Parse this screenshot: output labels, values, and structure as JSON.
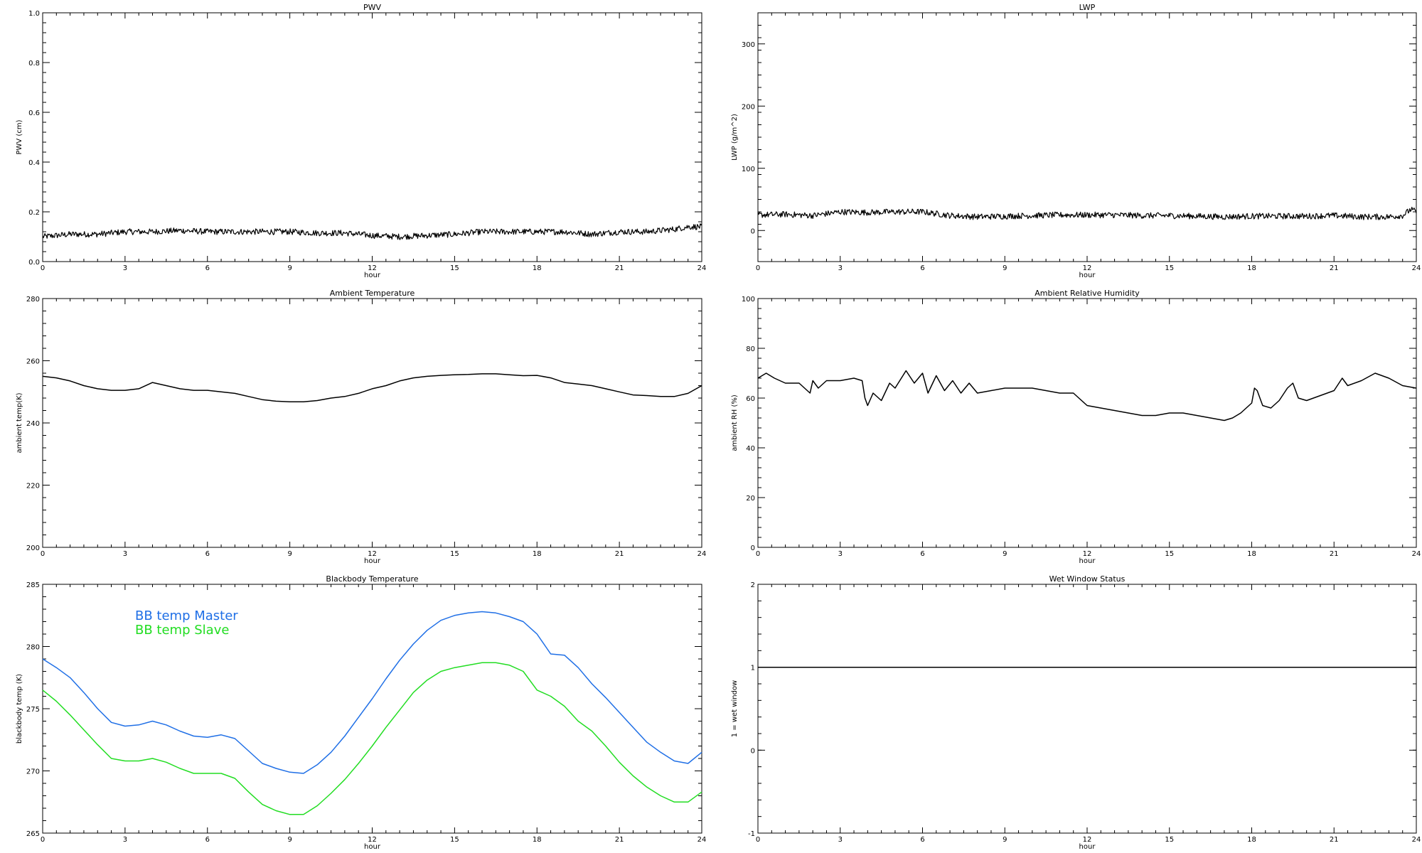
{
  "chart_data": [
    {
      "id": "pwv",
      "type": "line",
      "title": "PWV",
      "xlabel": "hour",
      "ylabel": "PWV (cm)",
      "xlim": [
        0,
        24
      ],
      "ylim": [
        0,
        1.0
      ],
      "xticks": [
        0,
        3,
        6,
        9,
        12,
        15,
        18,
        21,
        24
      ],
      "yticks": [
        0.0,
        0.2,
        0.4,
        0.6,
        0.8,
        1.0
      ],
      "ytick_labels": [
        "0.0",
        "0.2",
        "0.4",
        "0.6",
        "0.8",
        "1.0"
      ],
      "noisy": true,
      "series": [
        {
          "color": "#000000",
          "x": [
            0,
            1,
            2,
            3,
            4,
            5,
            6,
            7,
            8,
            9,
            10,
            11,
            12,
            13,
            14,
            15,
            16,
            17,
            18,
            19,
            20,
            21,
            22,
            23,
            23.5,
            24
          ],
          "values": [
            0.1,
            0.11,
            0.11,
            0.12,
            0.12,
            0.125,
            0.12,
            0.12,
            0.12,
            0.12,
            0.115,
            0.115,
            0.105,
            0.1,
            0.105,
            0.11,
            0.12,
            0.12,
            0.12,
            0.12,
            0.11,
            0.12,
            0.12,
            0.13,
            0.14,
            0.14
          ]
        }
      ]
    },
    {
      "id": "lwp",
      "type": "line",
      "title": "LWP",
      "xlabel": "hour",
      "ylabel": "LWP (g/m^2)",
      "xlim": [
        0,
        24
      ],
      "ylim": [
        -50,
        350
      ],
      "xticks": [
        0,
        3,
        6,
        9,
        12,
        15,
        18,
        21,
        24
      ],
      "yticks": [
        0,
        100,
        200,
        300
      ],
      "ytick_labels": [
        "0",
        "100",
        "200",
        "300"
      ],
      "noisy": true,
      "series": [
        {
          "color": "#000000",
          "x": [
            0,
            1,
            2,
            3,
            4,
            5,
            6,
            7,
            8,
            9,
            10,
            11,
            12,
            13,
            14,
            15,
            16,
            17,
            18,
            19,
            20,
            21,
            22,
            23,
            23.5,
            23.8,
            24
          ],
          "values": [
            25,
            26,
            24,
            30,
            29,
            30,
            30,
            24,
            22,
            23,
            24,
            25,
            25,
            25,
            24,
            24,
            23,
            22,
            23,
            23,
            23,
            24,
            22,
            22,
            24,
            34,
            30
          ]
        }
      ]
    },
    {
      "id": "ambient-temp",
      "type": "line",
      "title": "Ambient Temperature",
      "xlabel": "hour",
      "ylabel": "ambient temp(K)",
      "xlim": [
        0,
        24
      ],
      "ylim": [
        200,
        280
      ],
      "xticks": [
        0,
        3,
        6,
        9,
        12,
        15,
        18,
        21,
        24
      ],
      "yticks": [
        200,
        220,
        240,
        260,
        280
      ],
      "ytick_labels": [
        "200",
        "220",
        "240",
        "260",
        "280"
      ],
      "noisy": false,
      "series": [
        {
          "color": "#000000",
          "x": [
            0,
            0.5,
            1,
            1.5,
            2,
            2.5,
            3,
            3.5,
            4,
            4.5,
            5,
            5.5,
            6,
            6.5,
            7,
            7.5,
            8,
            8.5,
            9,
            9.5,
            10,
            10.5,
            11,
            11.5,
            12,
            12.5,
            13,
            13.5,
            14,
            14.5,
            15,
            15.5,
            16,
            16.5,
            17,
            17.5,
            18,
            18.5,
            19,
            19.5,
            20,
            20.5,
            21,
            21.5,
            22,
            22.5,
            23,
            23.5,
            24
          ],
          "values": [
            255,
            254.5,
            253.5,
            252,
            251,
            250.5,
            250.5,
            251,
            253,
            252,
            251,
            250.5,
            250.5,
            250,
            249.5,
            248.5,
            247.5,
            247,
            246.8,
            246.8,
            247.2,
            248,
            248.5,
            249.5,
            251,
            252,
            253.5,
            254.5,
            255,
            255.3,
            255.5,
            255.6,
            255.8,
            255.8,
            255.5,
            255.2,
            255.3,
            254.5,
            253,
            252.5,
            252,
            251,
            250,
            249,
            248.8,
            248.5,
            248.5,
            249.5,
            252
          ]
        }
      ]
    },
    {
      "id": "ambient-rh",
      "type": "line",
      "title": "Ambient Relative Humidity",
      "xlabel": "hour",
      "ylabel": "ambient RH (%)",
      "xlim": [
        0,
        24
      ],
      "ylim": [
        0,
        100
      ],
      "xticks": [
        0,
        3,
        6,
        9,
        12,
        15,
        18,
        21,
        24
      ],
      "yticks": [
        0,
        20,
        40,
        60,
        80,
        100
      ],
      "ytick_labels": [
        "0",
        "20",
        "40",
        "60",
        "80",
        "100"
      ],
      "noisy": false,
      "series": [
        {
          "color": "#000000",
          "x": [
            0,
            0.3,
            0.6,
            1,
            1.5,
            1.9,
            2.0,
            2.2,
            2.5,
            3,
            3.5,
            3.8,
            3.9,
            4.0,
            4.2,
            4.5,
            4.8,
            5.0,
            5.4,
            5.7,
            6.0,
            6.2,
            6.5,
            6.8,
            7.1,
            7.4,
            7.7,
            8.0,
            8.5,
            9,
            9.5,
            10,
            10.5,
            11,
            11.5,
            11.7,
            12,
            12.5,
            13,
            13.5,
            14,
            14.5,
            15,
            15.5,
            16,
            16.5,
            17,
            17.3,
            17.6,
            18,
            18.1,
            18.2,
            18.4,
            18.7,
            19,
            19.3,
            19.5,
            19.7,
            20,
            20.5,
            21,
            21.3,
            21.5,
            22,
            22.5,
            23,
            23.5,
            24
          ],
          "values": [
            68,
            70,
            68,
            66,
            66,
            62,
            67,
            64,
            67,
            67,
            68,
            67,
            60,
            57,
            62,
            59,
            66,
            64,
            71,
            66,
            70,
            62,
            69,
            63,
            67,
            62,
            66,
            62,
            63,
            64,
            64,
            64,
            63,
            62,
            62,
            60,
            57,
            56,
            55,
            54,
            53,
            53,
            54,
            54,
            53,
            52,
            51,
            52,
            54,
            58,
            64,
            63,
            57,
            56,
            59,
            64,
            66,
            60,
            59,
            61,
            63,
            68,
            65,
            67,
            70,
            68,
            65,
            64
          ]
        }
      ]
    },
    {
      "id": "blackbody-temp",
      "type": "line",
      "title": "Blackbody Temperature",
      "xlabel": "hour",
      "ylabel": "blackbody temp (K)",
      "xlim": [
        0,
        24
      ],
      "ylim": [
        265,
        285
      ],
      "xticks": [
        0,
        3,
        6,
        9,
        12,
        15,
        18,
        21,
        24
      ],
      "yticks": [
        265,
        270,
        275,
        280,
        285
      ],
      "ytick_labels": [
        "265",
        "270",
        "275",
        "280",
        "285"
      ],
      "noisy": false,
      "legend_position": "top-left",
      "series": [
        {
          "name": "BB temp Master",
          "color": "#1f6fe6",
          "x": [
            0,
            0.5,
            1,
            1.5,
            2,
            2.5,
            3,
            3.5,
            4,
            4.5,
            5,
            5.5,
            6,
            6.5,
            7,
            7.5,
            8,
            8.5,
            9,
            9.5,
            10,
            10.5,
            11,
            11.5,
            12,
            12.5,
            13,
            13.5,
            14,
            14.5,
            15,
            15.5,
            16,
            16.5,
            17,
            17.5,
            18,
            18.5,
            19,
            19.5,
            20,
            20.5,
            21,
            21.5,
            22,
            22.5,
            23,
            23.5,
            24
          ],
          "values": [
            279,
            278.3,
            277.5,
            276.3,
            275,
            273.9,
            273.6,
            273.7,
            274,
            273.7,
            273.2,
            272.8,
            272.7,
            272.9,
            272.6,
            271.6,
            270.6,
            270.2,
            269.9,
            269.8,
            270.5,
            271.5,
            272.8,
            274.3,
            275.8,
            277.4,
            278.9,
            280.2,
            281.3,
            282.1,
            282.5,
            282.7,
            282.8,
            282.7,
            282.4,
            282,
            281,
            279.4,
            279.3,
            278.3,
            277,
            275.9,
            274.7,
            273.5,
            272.3,
            271.5,
            270.8,
            270.6,
            271.5
          ]
        },
        {
          "name": "BB temp Slave",
          "color": "#22dd22",
          "x": [
            0,
            0.5,
            1,
            1.5,
            2,
            2.5,
            3,
            3.5,
            4,
            4.5,
            5,
            5.5,
            6,
            6.5,
            7,
            7.5,
            8,
            8.5,
            9,
            9.5,
            10,
            10.5,
            11,
            11.5,
            12,
            12.5,
            13,
            13.5,
            14,
            14.5,
            15,
            15.5,
            16,
            16.5,
            17,
            17.5,
            18,
            18.5,
            19,
            19.5,
            20,
            20.5,
            21,
            21.5,
            22,
            22.5,
            23,
            23.5,
            24
          ],
          "values": [
            276.5,
            275.6,
            274.5,
            273.3,
            272.1,
            271,
            270.8,
            270.8,
            271,
            270.7,
            270.2,
            269.8,
            269.8,
            269.8,
            269.4,
            268.3,
            267.3,
            266.8,
            266.5,
            266.5,
            267.2,
            268.2,
            269.3,
            270.6,
            272,
            273.5,
            274.9,
            276.3,
            277.3,
            278,
            278.3,
            278.5,
            278.7,
            278.7,
            278.5,
            278,
            276.5,
            276,
            275.2,
            274,
            273.2,
            272,
            270.7,
            269.6,
            268.7,
            268,
            267.5,
            267.5,
            268.3
          ]
        }
      ]
    },
    {
      "id": "wet-window",
      "type": "line",
      "title": "Wet Window Status",
      "xlabel": "hour",
      "ylabel": "1 = wet window",
      "xlim": [
        0,
        24
      ],
      "ylim": [
        -1,
        2
      ],
      "xticks": [
        0,
        3,
        6,
        9,
        12,
        15,
        18,
        21,
        24
      ],
      "yticks": [
        -1,
        0,
        1,
        2
      ],
      "ytick_labels": [
        "-1",
        "0",
        "1",
        "2"
      ],
      "noisy": false,
      "series": [
        {
          "color": "#000000",
          "x": [
            0,
            24
          ],
          "values": [
            1,
            1
          ]
        }
      ]
    }
  ]
}
